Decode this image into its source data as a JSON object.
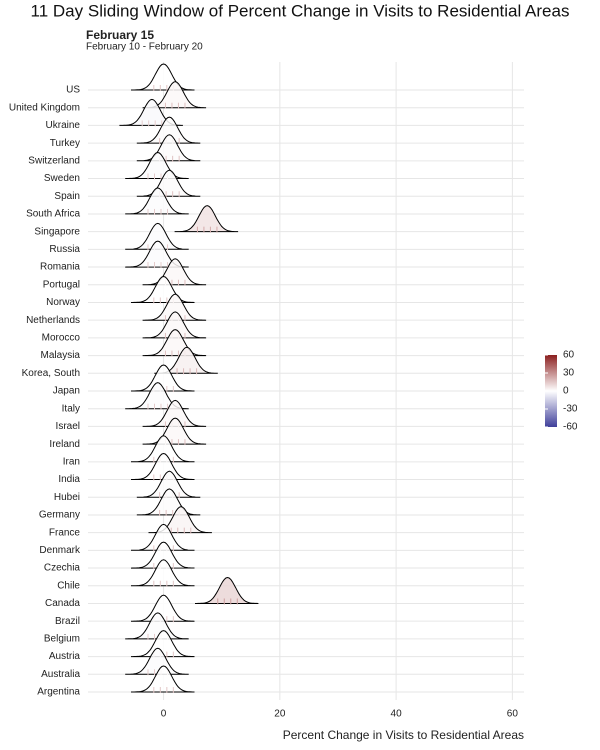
{
  "chart_data": {
    "type": "ridgeline",
    "title": "11 Day Sliding Window of Percent Change in Visits to Residential Areas",
    "subtitle": "February 15",
    "caption": "February 10 - February 20",
    "x_label": "Percent Change in Visits to Residential Areas",
    "categories": [
      "US",
      "United Kingdom",
      "Ukraine",
      "Turkey",
      "Switzerland",
      "Sweden",
      "Spain",
      "South Africa",
      "Singapore",
      "Russia",
      "Romania",
      "Portugal",
      "Norway",
      "Netherlands",
      "Morocco",
      "Malaysia",
      "Korea, South",
      "Japan",
      "Italy",
      "Israel",
      "Ireland",
      "Iran",
      "India",
      "Hubei",
      "Germany",
      "France",
      "Denmark",
      "Czechia",
      "Chile",
      "Canada",
      "Brazil",
      "Belgium",
      "Austria",
      "Australia",
      "Argentina"
    ],
    "values": [
      0,
      2,
      -2,
      1,
      1,
      -1,
      1,
      -1,
      7.5,
      -1,
      -1,
      2,
      0,
      2,
      2,
      2,
      4,
      0,
      -1,
      2,
      2,
      0,
      0,
      1,
      1,
      3,
      0,
      0,
      0,
      11,
      0,
      -1,
      0,
      -1,
      0
    ],
    "xlim": [
      -13,
      62
    ],
    "xticks": [
      0,
      20,
      40,
      60
    ],
    "grid": true,
    "colorbar": {
      "lim": [
        -60,
        60
      ],
      "ticks": [
        60,
        30,
        0,
        -30,
        -60
      ],
      "low": "#3f3f9a",
      "mid": "#ffffff",
      "high": "#8b1f1f"
    }
  }
}
